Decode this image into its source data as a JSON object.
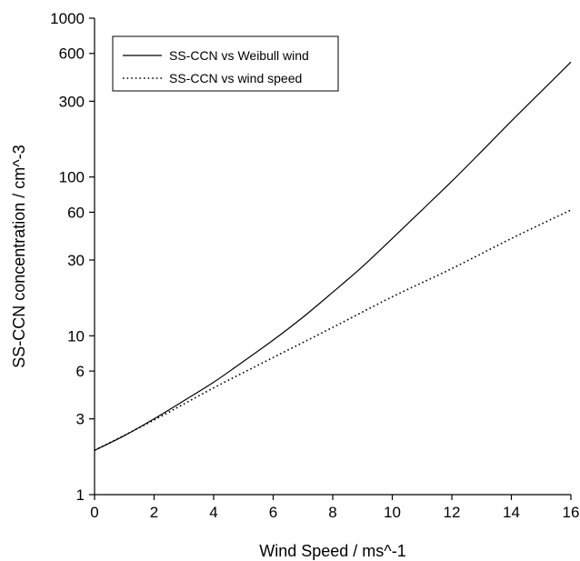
{
  "chart_data": {
    "type": "line",
    "xlabel": "Wind Speed / ms^-1",
    "ylabel": "SS-CCN concentration / cm^-3",
    "xlim": [
      0,
      16
    ],
    "ylim": [
      1,
      1000
    ],
    "yscale": "log",
    "grid": false,
    "legend_position": "top-left",
    "x_ticks": [
      0,
      2,
      4,
      6,
      8,
      10,
      12,
      14,
      16
    ],
    "x_tick_labels": [
      "0",
      "2",
      "4",
      "6",
      "8",
      "10",
      "12",
      "14",
      "16"
    ],
    "y_ticks": [
      1,
      3,
      6,
      10,
      30,
      60,
      100,
      300,
      600,
      1000
    ],
    "y_tick_labels": [
      "1",
      "3",
      "6",
      "10",
      "30",
      "60",
      "100",
      "300",
      "600",
      "1000"
    ],
    "series": [
      {
        "name": "SS-CCN vs Weibull wind",
        "style": "solid",
        "color": "#000000",
        "x": [
          0,
          1,
          2,
          3,
          4,
          5,
          6,
          7,
          8,
          9,
          10,
          11,
          12,
          13,
          14,
          15,
          16
        ],
        "y": [
          1.9,
          2.35,
          3.0,
          3.9,
          5.1,
          6.9,
          9.4,
          13.1,
          18.8,
          27.3,
          41.0,
          62.0,
          94.0,
          145.0,
          225.0,
          345.0,
          530.0
        ]
      },
      {
        "name": "SS-CCN vs wind speed",
        "style": "dotted",
        "color": "#000000",
        "x": [
          0,
          2,
          4,
          6,
          8,
          10,
          12,
          14,
          16
        ],
        "y": [
          1.9,
          2.95,
          4.7,
          7.3,
          11.3,
          17.6,
          26.5,
          41.0,
          62.0
        ]
      }
    ]
  }
}
